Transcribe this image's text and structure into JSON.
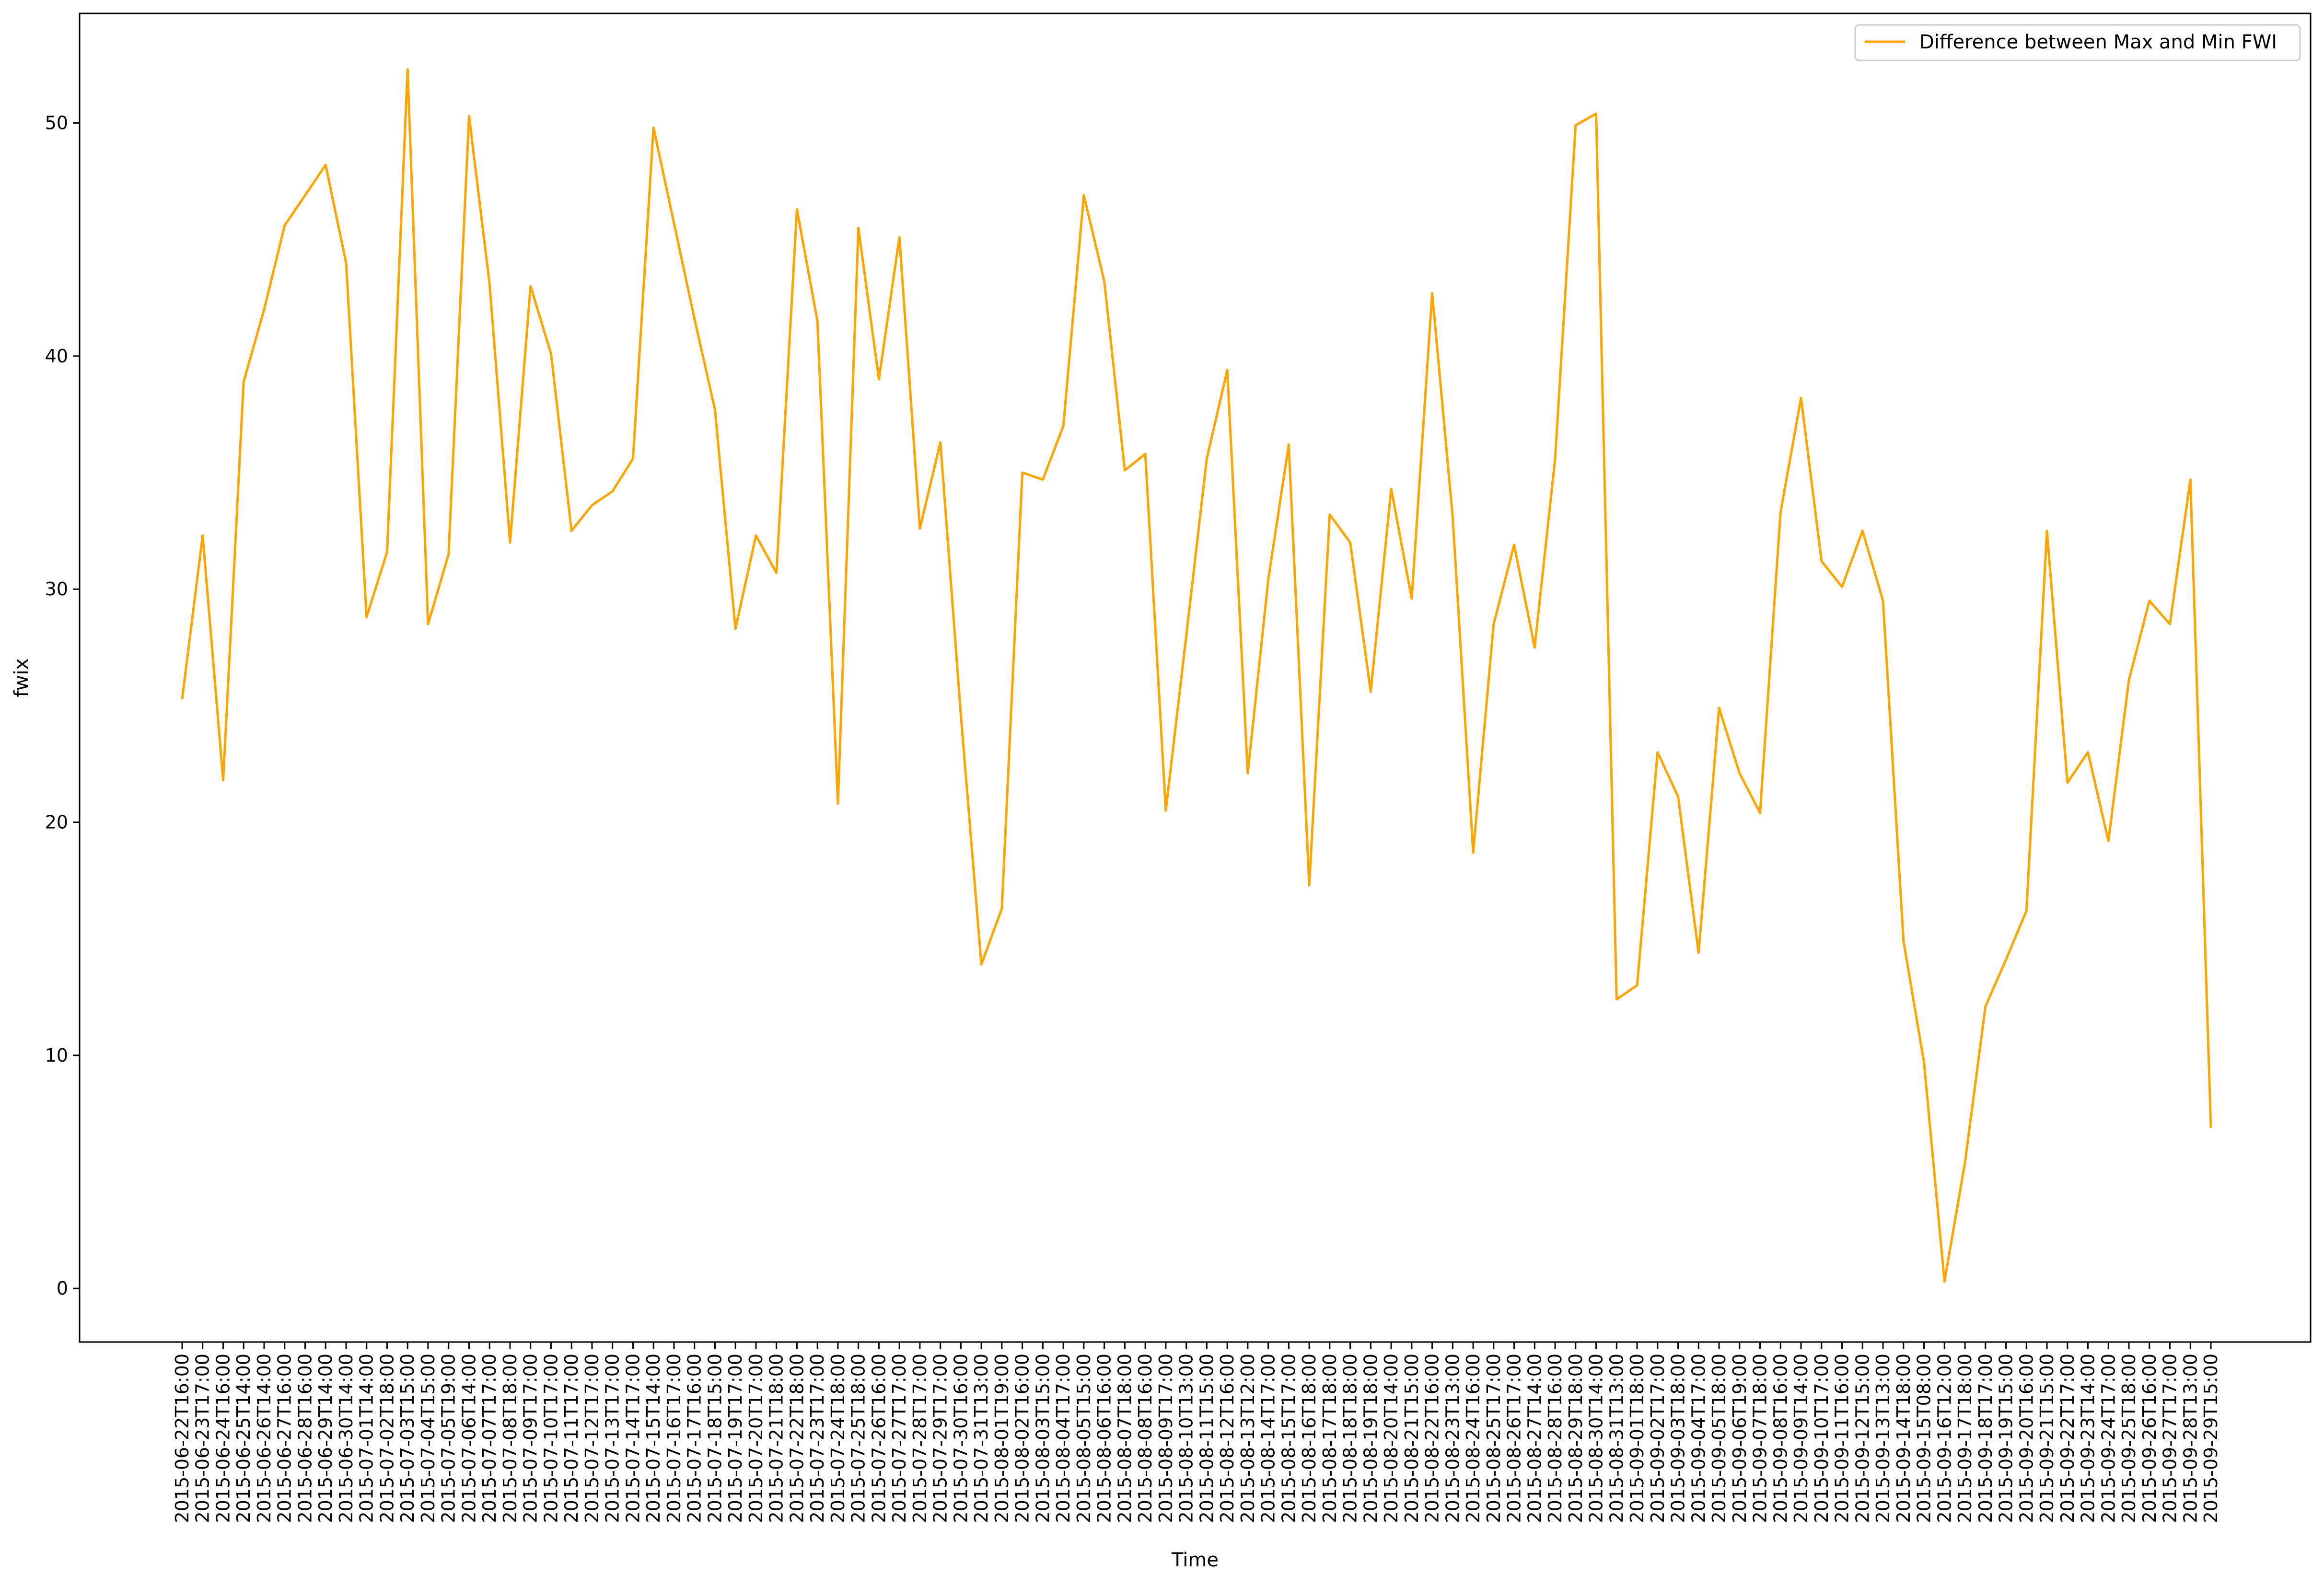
{
  "chart_data": {
    "type": "line",
    "title": "",
    "xlabel": "Time",
    "ylabel": "fwix",
    "ylim": [
      -2.3,
      54.7
    ],
    "yticks": [
      0,
      10,
      20,
      30,
      40,
      50
    ],
    "grid": false,
    "legend_position": "top-right",
    "colors": {
      "line": "#ffa500",
      "axes": "#000000",
      "background": "#ffffff"
    },
    "x": [
      "2015-06-22T16:00",
      "2015-06-23T17:00",
      "2015-06-24T16:00",
      "2015-06-25T14:00",
      "2015-06-26T14:00",
      "2015-06-27T16:00",
      "2015-06-28T16:00",
      "2015-06-29T14:00",
      "2015-06-30T14:00",
      "2015-07-01T14:00",
      "2015-07-02T18:00",
      "2015-07-03T15:00",
      "2015-07-04T15:00",
      "2015-07-05T19:00",
      "2015-07-06T14:00",
      "2015-07-07T17:00",
      "2015-07-08T18:00",
      "2015-07-09T17:00",
      "2015-07-10T17:00",
      "2015-07-11T17:00",
      "2015-07-12T17:00",
      "2015-07-13T17:00",
      "2015-07-14T17:00",
      "2015-07-15T14:00",
      "2015-07-16T17:00",
      "2015-07-17T16:00",
      "2015-07-18T15:00",
      "2015-07-19T17:00",
      "2015-07-20T17:00",
      "2015-07-21T18:00",
      "2015-07-22T18:00",
      "2015-07-23T17:00",
      "2015-07-24T18:00",
      "2015-07-25T18:00",
      "2015-07-26T16:00",
      "2015-07-27T17:00",
      "2015-07-28T17:00",
      "2015-07-29T17:00",
      "2015-07-30T16:00",
      "2015-07-31T13:00",
      "2015-08-01T19:00",
      "2015-08-02T16:00",
      "2015-08-03T15:00",
      "2015-08-04T17:00",
      "2015-08-05T15:00",
      "2015-08-06T16:00",
      "2015-08-07T18:00",
      "2015-08-08T16:00",
      "2015-08-09T17:00",
      "2015-08-10T13:00",
      "2015-08-11T15:00",
      "2015-08-12T16:00",
      "2015-08-13T12:00",
      "2015-08-14T17:00",
      "2015-08-15T17:00",
      "2015-08-16T18:00",
      "2015-08-17T18:00",
      "2015-08-18T18:00",
      "2015-08-19T18:00",
      "2015-08-20T14:00",
      "2015-08-21T15:00",
      "2015-08-22T16:00",
      "2015-08-23T13:00",
      "2015-08-24T16:00",
      "2015-08-25T17:00",
      "2015-08-26T17:00",
      "2015-08-27T14:00",
      "2015-08-28T16:00",
      "2015-08-29T18:00",
      "2015-08-30T14:00",
      "2015-08-31T13:00",
      "2015-09-01T18:00",
      "2015-09-02T17:00",
      "2015-09-03T18:00",
      "2015-09-04T17:00",
      "2015-09-05T18:00",
      "2015-09-06T19:00",
      "2015-09-07T18:00",
      "2015-09-08T16:00",
      "2015-09-09T14:00",
      "2015-09-10T17:00",
      "2015-09-11T16:00",
      "2015-09-12T15:00",
      "2015-09-13T13:00",
      "2015-09-14T18:00",
      "2015-09-15T08:00",
      "2015-09-16T12:00",
      "2015-09-17T18:00",
      "2015-09-18T17:00",
      "2015-09-19T15:00",
      "2015-09-20T16:00",
      "2015-09-21T15:00",
      "2015-09-22T17:00",
      "2015-09-23T14:00",
      "2015-09-24T17:00",
      "2015-09-25T18:00",
      "2015-09-26T16:00",
      "2015-09-27T17:00",
      "2015-09-28T13:00",
      "2015-09-29T15:00"
    ],
    "series": [
      {
        "name": "Difference between Max and Min FWI",
        "values": [
          25.3,
          32.3,
          21.8,
          38.9,
          42.0,
          45.6,
          46.9,
          48.2,
          44.0,
          28.8,
          31.6,
          52.3,
          28.5,
          31.5,
          50.3,
          43.1,
          32.0,
          43.0,
          40.1,
          32.5,
          33.6,
          34.2,
          35.6,
          49.8,
          45.7,
          41.6,
          37.7,
          28.3,
          32.3,
          30.7,
          46.3,
          41.5,
          20.8,
          45.5,
          39.0,
          45.1,
          32.6,
          36.3,
          24.6,
          13.9,
          16.3,
          35.0,
          34.7,
          37.0,
          46.9,
          43.2,
          35.1,
          35.8,
          20.5,
          28.0,
          35.6,
          39.4,
          22.1,
          30.4,
          36.2,
          17.3,
          33.2,
          32.0,
          25.6,
          34.3,
          29.6,
          42.7,
          33.1,
          18.7,
          28.5,
          31.9,
          27.5,
          35.6,
          49.9,
          50.4,
          12.4,
          13.0,
          23.0,
          21.1,
          14.4,
          24.9,
          22.1,
          20.4,
          33.3,
          38.2,
          31.2,
          30.1,
          32.5,
          29.5,
          14.9,
          9.7,
          0.3,
          5.4,
          12.1,
          14.1,
          16.2,
          32.5,
          21.7,
          23.0,
          19.2,
          26.1,
          29.5,
          28.5,
          34.7,
          6.9
        ]
      }
    ]
  }
}
